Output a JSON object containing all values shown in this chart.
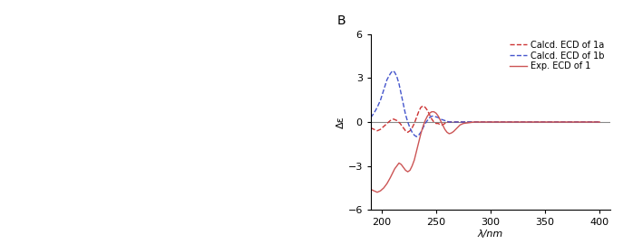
{
  "title": "B",
  "xlabel": "λ/nm",
  "ylabel": "Δε",
  "xlim": [
    190,
    410
  ],
  "ylim": [
    -6,
    6
  ],
  "xticks": [
    200,
    250,
    300,
    350,
    400
  ],
  "yticks": [
    -6,
    -3,
    0,
    3,
    6
  ],
  "legend": [
    "Calcd. ECD of 1a",
    "Calcd. ECD of 1b",
    "Exp. ECD of 1"
  ],
  "line_colors_1a": "#cc3333",
  "line_colors_1b": "#4455cc",
  "line_colors_exp": "#cc5555",
  "background": "#ffffff",
  "curve_1a_x": [
    190,
    193,
    196,
    199,
    202,
    205,
    208,
    211,
    214,
    217,
    220,
    222,
    224,
    226,
    228,
    230,
    232,
    234,
    236,
    238,
    240,
    242,
    244,
    246,
    248,
    250,
    252,
    254,
    256,
    258,
    260,
    262,
    264,
    266,
    268,
    270,
    275,
    280,
    285,
    290,
    295,
    300,
    310,
    320,
    340,
    360,
    380,
    400
  ],
  "curve_1a_y": [
    -0.4,
    -0.5,
    -0.6,
    -0.5,
    -0.3,
    -0.1,
    0.1,
    0.2,
    0.1,
    -0.1,
    -0.4,
    -0.6,
    -0.7,
    -0.6,
    -0.4,
    -0.1,
    0.3,
    0.7,
    1.0,
    1.1,
    1.0,
    0.8,
    0.5,
    0.2,
    0.0,
    -0.1,
    -0.1,
    -0.2,
    -0.2,
    -0.1,
    0.0,
    0.0,
    0.0,
    0.0,
    0.0,
    0.0,
    0.0,
    0.0,
    0.0,
    0.0,
    0.0,
    0.0,
    0.0,
    0.0,
    0.0,
    0.0,
    0.0,
    0.0
  ],
  "curve_1b_x": [
    190,
    193,
    196,
    199,
    202,
    205,
    208,
    210,
    212,
    214,
    216,
    218,
    220,
    222,
    224,
    226,
    228,
    230,
    232,
    234,
    236,
    238,
    240,
    242,
    244,
    246,
    248,
    250,
    252,
    254,
    256,
    258,
    260,
    262,
    264,
    266,
    268,
    270,
    275,
    280,
    285,
    290,
    295,
    300,
    310,
    320,
    340,
    360,
    380,
    400
  ],
  "curve_1b_y": [
    0.3,
    0.6,
    1.0,
    1.5,
    2.2,
    2.9,
    3.3,
    3.5,
    3.4,
    3.1,
    2.6,
    1.9,
    1.2,
    0.5,
    0.0,
    -0.4,
    -0.7,
    -0.9,
    -1.0,
    -0.9,
    -0.7,
    -0.4,
    -0.1,
    0.1,
    0.3,
    0.4,
    0.4,
    0.35,
    0.3,
    0.2,
    0.15,
    0.1,
    0.05,
    0.0,
    0.0,
    0.0,
    0.0,
    0.0,
    0.0,
    0.0,
    0.0,
    0.0,
    0.0,
    0.0,
    0.0,
    0.0,
    0.0,
    0.0,
    0.0,
    0.0
  ],
  "curve_exp_x": [
    190,
    193,
    196,
    199,
    202,
    205,
    208,
    210,
    212,
    214,
    216,
    218,
    220,
    222,
    224,
    226,
    228,
    230,
    232,
    234,
    236,
    238,
    240,
    242,
    244,
    246,
    248,
    250,
    252,
    254,
    256,
    258,
    260,
    262,
    264,
    266,
    268,
    270,
    272,
    275,
    280,
    285,
    290,
    295,
    300,
    310,
    320,
    340,
    360,
    380,
    400
  ],
  "curve_exp_y": [
    -4.6,
    -4.7,
    -4.8,
    -4.7,
    -4.5,
    -4.2,
    -3.8,
    -3.5,
    -3.2,
    -3.0,
    -2.8,
    -2.9,
    -3.1,
    -3.3,
    -3.4,
    -3.3,
    -3.0,
    -2.6,
    -2.0,
    -1.4,
    -0.8,
    -0.3,
    0.1,
    0.4,
    0.6,
    0.7,
    0.7,
    0.6,
    0.4,
    0.1,
    -0.2,
    -0.5,
    -0.7,
    -0.8,
    -0.75,
    -0.65,
    -0.5,
    -0.35,
    -0.2,
    -0.1,
    -0.05,
    0.0,
    0.0,
    0.0,
    0.0,
    0.0,
    0.0,
    0.0,
    0.0,
    0.0,
    0.0
  ]
}
